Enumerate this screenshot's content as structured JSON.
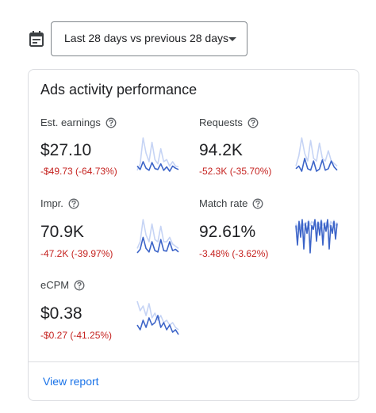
{
  "date_range": {
    "label": "Last 28 days vs previous 28 days"
  },
  "card": {
    "title": "Ads activity performance",
    "metrics": [
      {
        "label": "Est. earnings",
        "value": "$27.10",
        "change": "-$49.73 (-64.73%)",
        "sparkline": {
          "current": [
            30,
            22,
            40,
            25,
            20,
            38,
            24,
            22,
            35,
            20,
            28,
            18,
            30,
            25,
            22
          ],
          "previous": [
            20,
            35,
            95,
            60,
            40,
            85,
            45,
            35,
            70,
            40,
            45,
            30,
            40,
            30,
            28
          ]
        }
      },
      {
        "label": "Requests",
        "value": "94.2K",
        "change": "-52.3K (-35.70%)",
        "sparkline": {
          "current": [
            25,
            30,
            20,
            45,
            25,
            22,
            40,
            20,
            24,
            42,
            22,
            25,
            40,
            28,
            22
          ],
          "previous": [
            30,
            50,
            85,
            55,
            40,
            80,
            45,
            40,
            75,
            45,
            40,
            60,
            40,
            35,
            30
          ]
        }
      },
      {
        "label": "Impr.",
        "value": "70.9K",
        "change": "-47.2K (-39.97%)",
        "sparkline": {
          "current": [
            20,
            28,
            55,
            30,
            22,
            45,
            25,
            22,
            50,
            25,
            24,
            45,
            25,
            28,
            22
          ],
          "previous": [
            30,
            45,
            95,
            60,
            45,
            85,
            50,
            45,
            80,
            45,
            45,
            55,
            40,
            35,
            30
          ]
        }
      },
      {
        "label": "Match rate",
        "value": "92.61%",
        "change": "-3.48% (-3.62%)",
        "sparkline": {
          "current": [
            80,
            30,
            90,
            50,
            95,
            20,
            85,
            60,
            90,
            10,
            80,
            70,
            95,
            40,
            88,
            55,
            92,
            30,
            85,
            65,
            95,
            20,
            80,
            60,
            90,
            45,
            85
          ],
          "previous": [
            85,
            70,
            92,
            75,
            90,
            80,
            88,
            85,
            93,
            80,
            90,
            85,
            94,
            78,
            90,
            82,
            95,
            80,
            88,
            85,
            92,
            75,
            90,
            84,
            93,
            80,
            88
          ]
        }
      },
      {
        "label": "eCPM",
        "value": "$0.38",
        "change": "-$0.27 (-41.25%)",
        "sparkline": {
          "current": [
            40,
            30,
            50,
            35,
            55,
            40,
            45,
            60,
            35,
            45,
            30,
            40,
            25,
            30,
            20
          ],
          "previous": [
            90,
            70,
            80,
            60,
            85,
            55,
            65,
            50,
            60,
            45,
            50,
            40,
            45,
            35,
            30
          ]
        }
      }
    ],
    "footer_link": "View report"
  }
}
